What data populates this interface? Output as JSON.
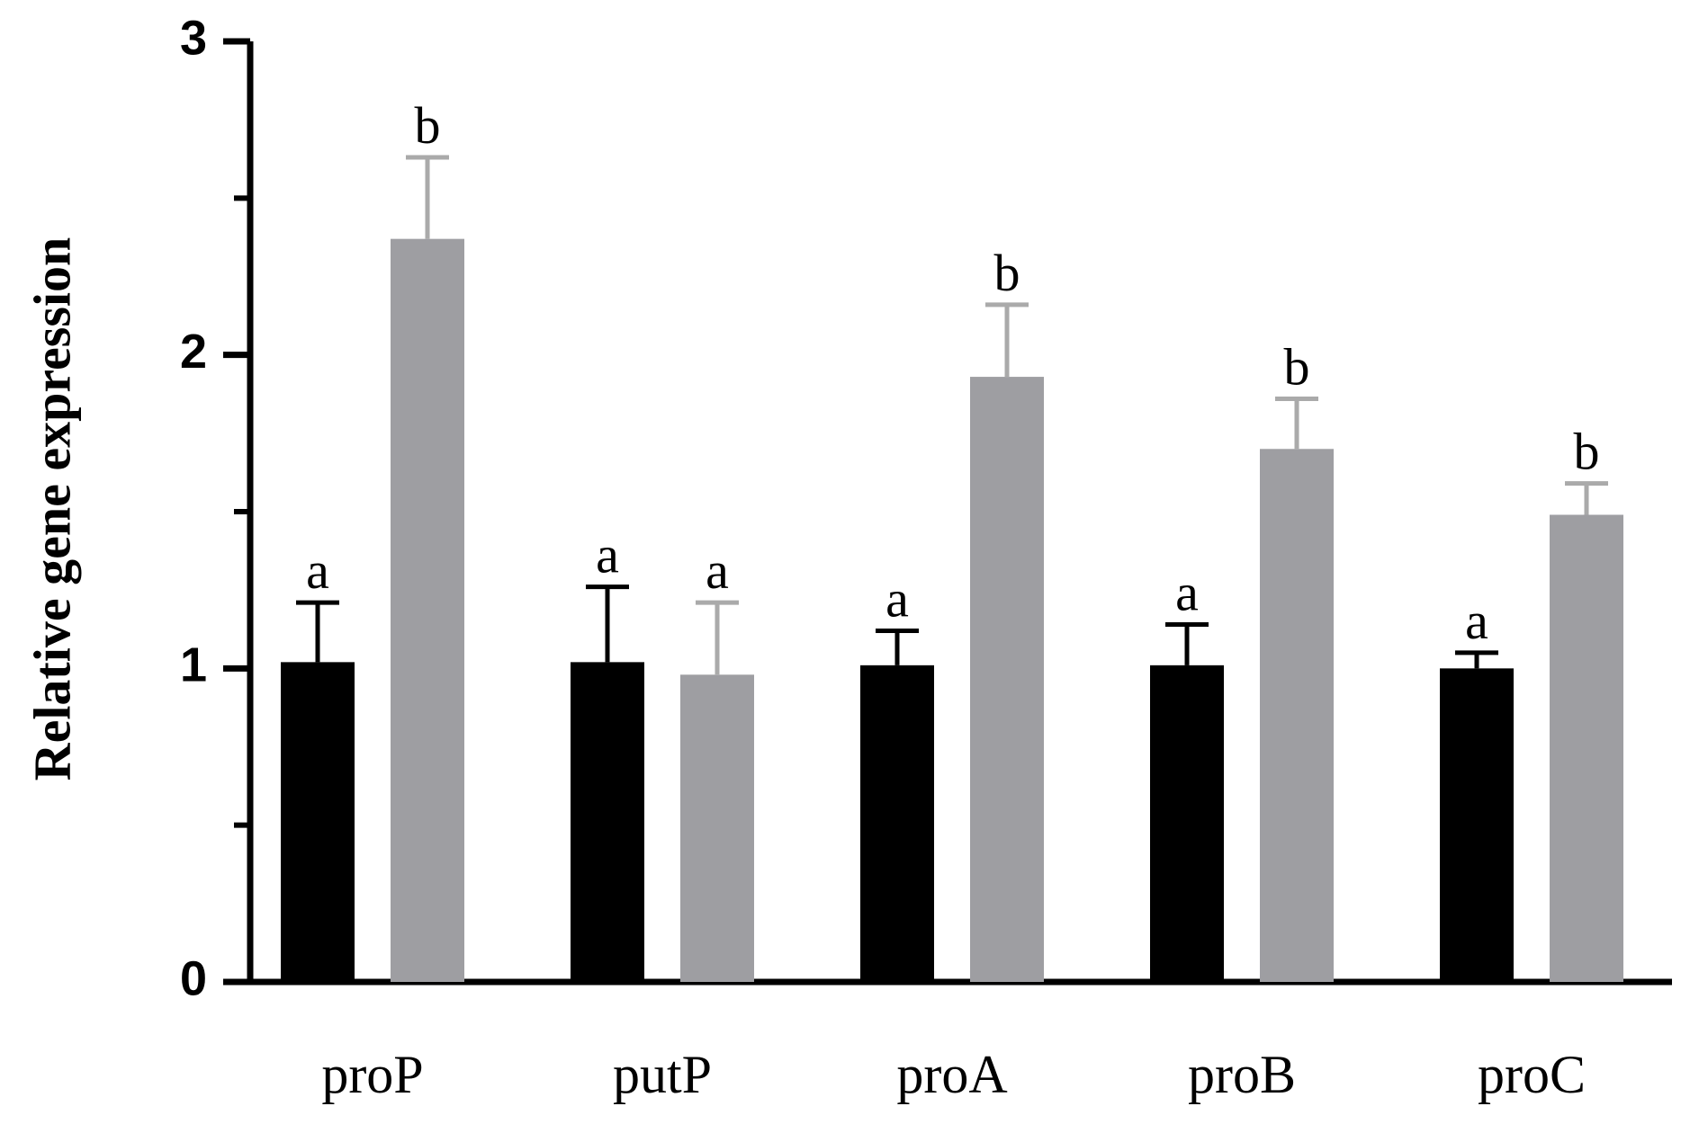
{
  "chart_data": {
    "type": "bar",
    "title": "",
    "xlabel": "",
    "ylabel": "Relative gene expression",
    "ylim": [
      0,
      3
    ],
    "yticks": [
      0,
      1,
      2,
      3
    ],
    "minor_yticks": [
      0.5,
      1.5,
      2.5
    ],
    "categories": [
      "proP",
      "putP",
      "proA",
      "proB",
      "proC"
    ],
    "series": [
      {
        "color": "#000000",
        "values": [
          1.02,
          1.02,
          1.01,
          1.01,
          1.0
        ],
        "errors": [
          0.19,
          0.24,
          0.11,
          0.13,
          0.05
        ],
        "significance": [
          "a",
          "a",
          "a",
          "a",
          "a"
        ]
      },
      {
        "color": "#9e9ea2",
        "values": [
          2.37,
          0.98,
          1.93,
          1.7,
          1.49
        ],
        "errors": [
          0.26,
          0.23,
          0.23,
          0.16,
          0.1
        ],
        "significance": [
          "b",
          "a",
          "b",
          "b",
          "b"
        ]
      }
    ],
    "error_bar_colors": [
      "#000000",
      "#aaaaaa"
    ],
    "grid": false,
    "legend": "none"
  }
}
